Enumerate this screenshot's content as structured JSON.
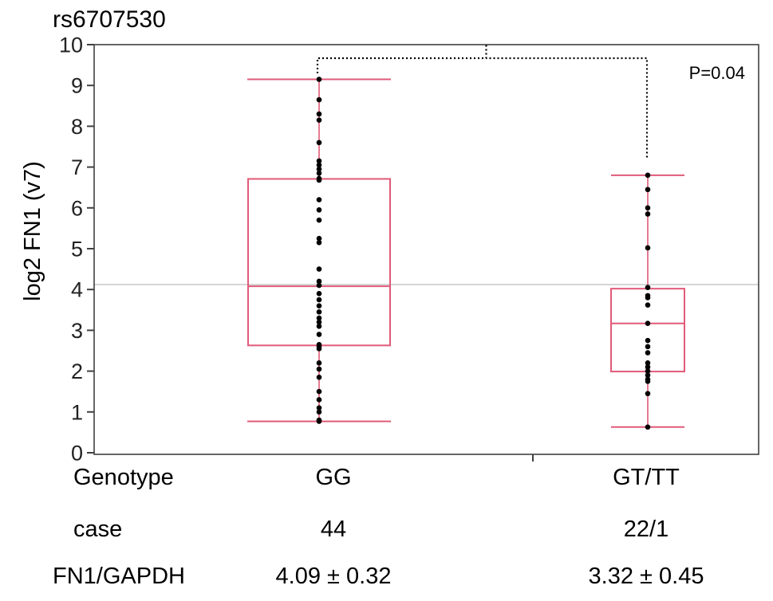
{
  "chart_data": {
    "type": "box",
    "title": "rs6707530",
    "ylabel": "log2 FN1 (v7)",
    "ylim": [
      0,
      10
    ],
    "yticks": [
      0,
      1,
      2,
      3,
      4,
      5,
      6,
      7,
      8,
      9,
      10
    ],
    "grand_mean": 4.12,
    "annotation": "P=0.04",
    "categories": [
      "GG",
      "GT/TT"
    ],
    "boxes": [
      {
        "category": "GG",
        "min": 0.77,
        "q1": 2.63,
        "median": 4.08,
        "q3": 6.71,
        "max": 9.15
      },
      {
        "category": "GT/TT",
        "min": 0.63,
        "q1": 1.99,
        "median": 3.17,
        "q3": 4.02,
        "max": 6.8
      }
    ],
    "points": [
      {
        "category": "GG",
        "values": [
          9.15,
          8.65,
          8.3,
          8.15,
          7.6,
          7.15,
          7.05,
          6.95,
          6.85,
          6.72,
          6.68,
          6.2,
          5.95,
          5.7,
          5.25,
          5.15,
          4.5,
          4.2,
          4.1,
          3.9,
          3.75,
          3.6,
          3.45,
          3.3,
          3.2,
          3.1,
          2.9,
          2.65,
          2.6,
          2.55,
          2.2,
          2.05,
          1.85,
          1.5,
          1.3,
          1.1,
          1.0,
          0.8,
          0.77
        ]
      },
      {
        "category": "GT/TT",
        "values": [
          6.8,
          6.45,
          6.0,
          5.85,
          5.02,
          4.05,
          3.85,
          3.8,
          3.62,
          3.17,
          2.75,
          2.6,
          2.45,
          2.2,
          2.1,
          2.0,
          1.9,
          1.8,
          1.75,
          1.45,
          0.63
        ]
      }
    ],
    "bracket": {
      "from": "GG",
      "to": "GT/TT"
    },
    "table": {
      "row_labels": [
        "Genotype",
        "case",
        "FN1/GAPDH"
      ],
      "columns": [
        {
          "genotype": "GG",
          "case": "44",
          "ratio": "4.09 ± 0.32"
        },
        {
          "genotype": "GT/TT",
          "case": "22/1",
          "ratio": "3.32 ± 0.45"
        }
      ]
    },
    "colors": {
      "box": "#e05a78",
      "point": "#000000",
      "mean_line": "#c8c8c8",
      "axis": "#404040"
    }
  }
}
